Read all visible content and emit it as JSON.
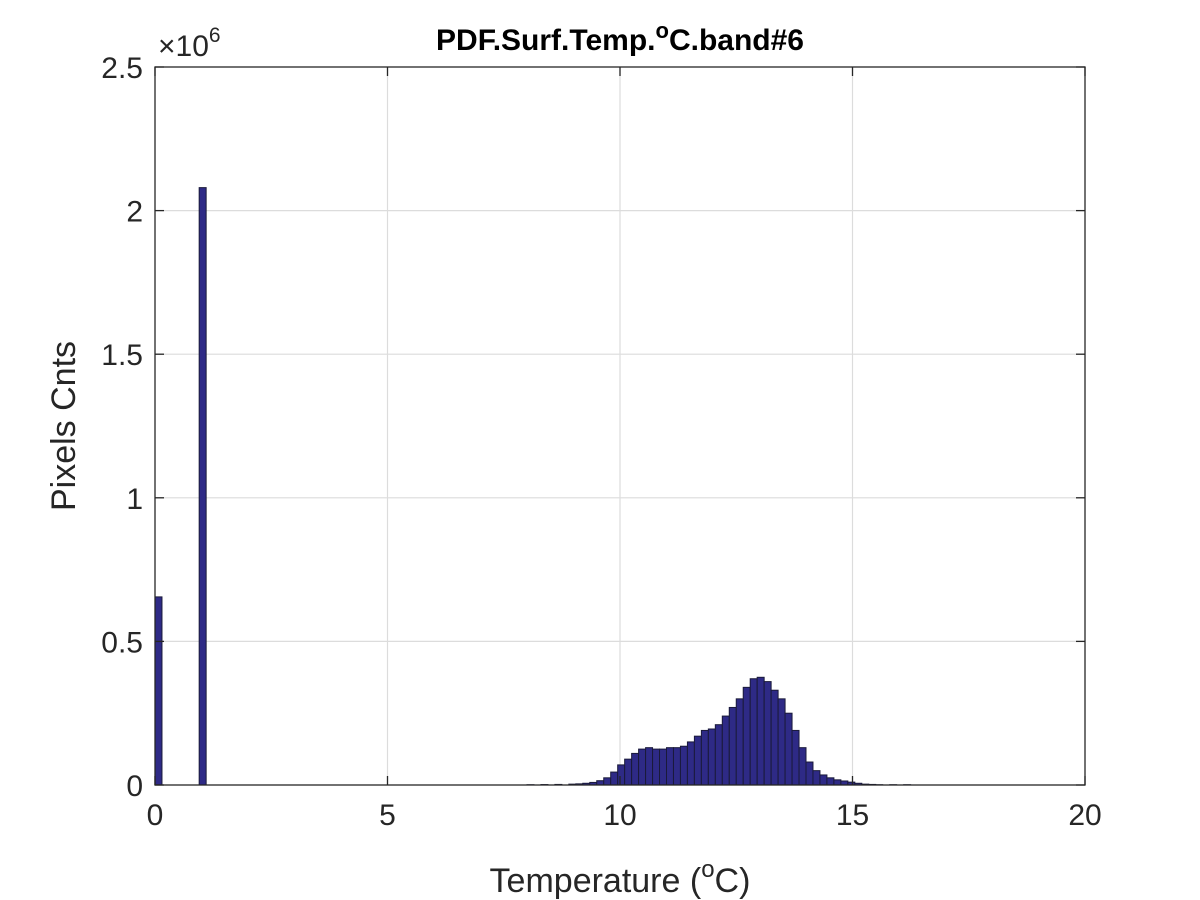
{
  "chart_data": {
    "type": "bar",
    "title_main": "PDF.Surf.Temp.",
    "title_sup": "o",
    "title_tail": "C.band#6",
    "xlabel_main": "Temperature (",
    "xlabel_sup": "o",
    "xlabel_tail": "C)",
    "ylabel": "Pixels Cnts",
    "exponent_base": "×10",
    "exponent_power": "6",
    "xlim": [
      0,
      20
    ],
    "ylim": [
      0,
      2500000
    ],
    "xticks": [
      0,
      5,
      10,
      15,
      20
    ],
    "xtick_labels": [
      "0",
      "5",
      "10",
      "15",
      "20"
    ],
    "yticks": [
      0,
      500000,
      1000000,
      1500000,
      2000000,
      2500000
    ],
    "ytick_labels": [
      "0",
      "0.5",
      "1",
      "1.5",
      "2",
      "2.5"
    ],
    "grid": true,
    "bin_width": 0.15,
    "bar_color": "#2e2a86",
    "bar_edge_color": "#1a1a3a",
    "bins": [
      {
        "x": 0.0,
        "value": 655000
      },
      {
        "x": 0.95,
        "value": 2080000
      },
      {
        "x": 8.0,
        "value": 1000
      },
      {
        "x": 8.3,
        "value": 1500
      },
      {
        "x": 8.6,
        "value": 2000
      },
      {
        "x": 8.9,
        "value": 3000
      },
      {
        "x": 9.05,
        "value": 4000
      },
      {
        "x": 9.2,
        "value": 6000
      },
      {
        "x": 9.35,
        "value": 9000
      },
      {
        "x": 9.5,
        "value": 15000
      },
      {
        "x": 9.65,
        "value": 25000
      },
      {
        "x": 9.8,
        "value": 45000
      },
      {
        "x": 9.95,
        "value": 70000
      },
      {
        "x": 10.1,
        "value": 90000
      },
      {
        "x": 10.25,
        "value": 110000
      },
      {
        "x": 10.4,
        "value": 125000
      },
      {
        "x": 10.55,
        "value": 130000
      },
      {
        "x": 10.7,
        "value": 125000
      },
      {
        "x": 10.85,
        "value": 125000
      },
      {
        "x": 11.0,
        "value": 130000
      },
      {
        "x": 11.15,
        "value": 130000
      },
      {
        "x": 11.3,
        "value": 135000
      },
      {
        "x": 11.45,
        "value": 150000
      },
      {
        "x": 11.6,
        "value": 170000
      },
      {
        "x": 11.75,
        "value": 190000
      },
      {
        "x": 11.9,
        "value": 195000
      },
      {
        "x": 12.05,
        "value": 210000
      },
      {
        "x": 12.2,
        "value": 240000
      },
      {
        "x": 12.35,
        "value": 270000
      },
      {
        "x": 12.5,
        "value": 300000
      },
      {
        "x": 12.65,
        "value": 340000
      },
      {
        "x": 12.8,
        "value": 370000
      },
      {
        "x": 12.95,
        "value": 375000
      },
      {
        "x": 13.1,
        "value": 360000
      },
      {
        "x": 13.25,
        "value": 330000
      },
      {
        "x": 13.4,
        "value": 300000
      },
      {
        "x": 13.55,
        "value": 250000
      },
      {
        "x": 13.7,
        "value": 190000
      },
      {
        "x": 13.85,
        "value": 130000
      },
      {
        "x": 14.0,
        "value": 80000
      },
      {
        "x": 14.15,
        "value": 50000
      },
      {
        "x": 14.3,
        "value": 35000
      },
      {
        "x": 14.45,
        "value": 25000
      },
      {
        "x": 14.6,
        "value": 18000
      },
      {
        "x": 14.75,
        "value": 14000
      },
      {
        "x": 14.9,
        "value": 10000
      },
      {
        "x": 15.05,
        "value": 6000
      },
      {
        "x": 15.2,
        "value": 3000
      },
      {
        "x": 15.35,
        "value": 2000
      },
      {
        "x": 15.5,
        "value": 1000
      },
      {
        "x": 15.8,
        "value": 1000
      },
      {
        "x": 16.1,
        "value": 1000
      }
    ]
  }
}
